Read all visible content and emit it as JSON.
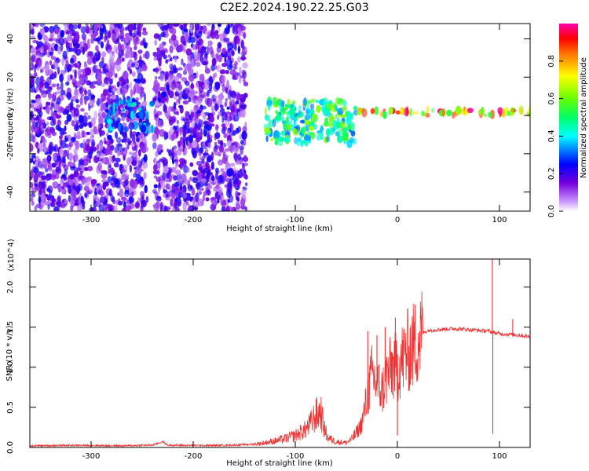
{
  "title": "C2E2.2024.190.22.25.G03",
  "chart_data": [
    {
      "type": "heatmap",
      "xlabel": "Height of straight line (km)",
      "ylabel": "Frequency (Hz)",
      "xlim": [
        -360,
        130
      ],
      "ylim": [
        -50,
        48
      ],
      "xticks": [
        -300,
        -200,
        -100,
        0,
        100
      ],
      "yticks": [
        -40,
        -20,
        0,
        20,
        40
      ],
      "colorbar": {
        "label": "Normalized spectral amplitude",
        "range": [
          0.0,
          1.0
        ],
        "ticks": [
          0.0,
          0.2,
          0.4,
          0.6,
          0.8
        ],
        "tick_labels": [
          "0.0",
          "0.2",
          "0.4",
          "0.6",
          "0.8"
        ]
      },
      "regions": [
        {
          "x": [
            -360,
            -245
          ],
          "freq": [
            -50,
            48
          ],
          "amplitude": [
            0.05,
            0.25
          ]
        },
        {
          "x": [
            -238,
            -148
          ],
          "freq": [
            -50,
            48
          ],
          "amplitude": [
            0.05,
            0.25
          ]
        },
        {
          "x": [
            -285,
            -240
          ],
          "freq": [
            -8,
            8
          ],
          "amplitude": [
            0.2,
            0.45
          ]
        },
        {
          "x": [
            -130,
            -40
          ],
          "freq": [
            -15,
            8
          ],
          "amplitude": [
            0.3,
            0.65
          ]
        },
        {
          "x": [
            -40,
            130
          ],
          "freq": [
            0,
            3
          ],
          "amplitude": [
            0.5,
            1.0
          ]
        }
      ]
    },
    {
      "type": "line",
      "xlabel": "Height of straight line (km)",
      "ylabel": "SNR (10 * v/v)",
      "y_multiplier": "(x10^4)",
      "xlim": [
        -360,
        130
      ],
      "ylim": [
        0,
        23500
      ],
      "xticks": [
        -300,
        -200,
        -100,
        0,
        100
      ],
      "yticks": [
        0,
        5000,
        10000,
        15000,
        20000
      ],
      "ytick_labels": [
        "0.0",
        "0.5",
        "1.0",
        "1.5",
        "2.0"
      ],
      "color": "#ee3333",
      "series": [
        {
          "points": [
            [
              -360,
              200
            ],
            [
              -330,
              250
            ],
            [
              -300,
              250
            ],
            [
              -270,
              200
            ],
            [
              -240,
              300
            ],
            [
              -230,
              700
            ],
            [
              -225,
              300
            ],
            [
              -200,
              250
            ],
            [
              -180,
              250
            ],
            [
              -160,
              300
            ],
            [
              -140,
              400
            ],
            [
              -120,
              800
            ],
            [
              -110,
              1100
            ],
            [
              -100,
              1500
            ],
            [
              -90,
              2200
            ],
            [
              -85,
              3000
            ],
            [
              -80,
              4000
            ],
            [
              -75,
              4500
            ],
            [
              -72,
              2500
            ],
            [
              -68,
              1200
            ],
            [
              -60,
              700
            ],
            [
              -50,
              600
            ],
            [
              -45,
              1000
            ],
            [
              -40,
              1800
            ],
            [
              -35,
              3000
            ],
            [
              -30,
              6000
            ],
            [
              -25,
              9000
            ],
            [
              -20,
              8000
            ],
            [
              -15,
              7000
            ],
            [
              -10,
              9000
            ],
            [
              -5,
              10000
            ],
            [
              0,
              10000
            ],
            [
              5,
              11000
            ],
            [
              10,
              12000
            ],
            [
              15,
              12500
            ],
            [
              20,
              13500
            ],
            [
              25,
              14300
            ],
            [
              30,
              14600
            ],
            [
              40,
              14700
            ],
            [
              50,
              14800
            ],
            [
              60,
              14800
            ],
            [
              70,
              14700
            ],
            [
              80,
              14600
            ],
            [
              90,
              14500
            ],
            [
              95,
              14300
            ],
            [
              100,
              14200
            ],
            [
              110,
              14100
            ],
            [
              120,
              14000
            ],
            [
              130,
              13800
            ]
          ]
        }
      ],
      "spikes": [
        {
          "x": -29,
          "y": 14500
        },
        {
          "x": -20,
          "y": 14000
        },
        {
          "x": -12,
          "y": 15000
        },
        {
          "x": -2,
          "y": 16200
        },
        {
          "x": 0,
          "y": 1500
        },
        {
          "x": 93,
          "y": 23500
        },
        {
          "x": 93.5,
          "y": 1700
        },
        {
          "x": 113,
          "y": 16000
        }
      ]
    }
  ]
}
